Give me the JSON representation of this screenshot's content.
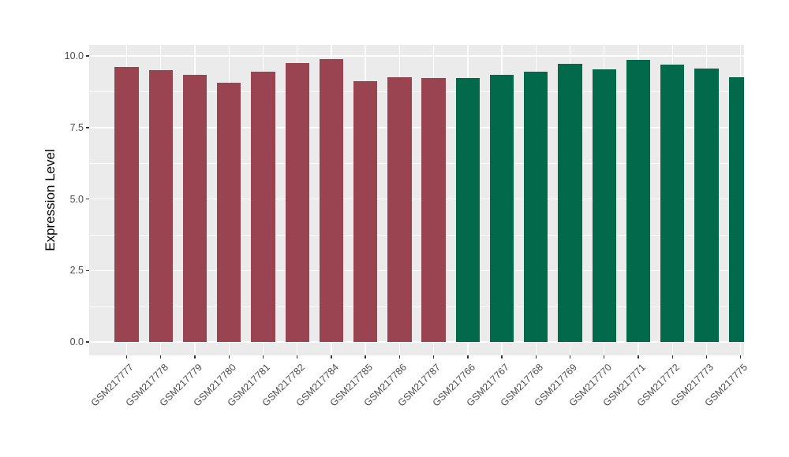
{
  "chart_data": {
    "type": "bar",
    "title": "",
    "xlabel": "",
    "ylabel": "Expression Level",
    "legend": "none",
    "grid": true,
    "categories": [
      "GSM217777",
      "GSM217778",
      "GSM217779",
      "GSM217780",
      "GSM217781",
      "GSM217782",
      "GSM217784",
      "GSM217785",
      "GSM217786",
      "GSM217787",
      "GSM217766",
      "GSM217767",
      "GSM217768",
      "GSM217769",
      "GSM217770",
      "GSM217771",
      "GSM217772",
      "GSM217773",
      "GSM217775"
    ],
    "values": [
      9.62,
      9.5,
      9.33,
      9.07,
      9.46,
      9.75,
      9.9,
      9.12,
      9.25,
      9.23,
      9.22,
      9.34,
      9.45,
      9.73,
      9.53,
      9.86,
      9.7,
      9.57,
      9.26
    ],
    "bar_colors": [
      "#9B4451",
      "#9B4451",
      "#9B4451",
      "#9B4451",
      "#9B4451",
      "#9B4451",
      "#9B4451",
      "#9B4451",
      "#9B4451",
      "#9B4451",
      "#02694A",
      "#02694A",
      "#02694A",
      "#02694A",
      "#02694A",
      "#02694A",
      "#02694A",
      "#02694A",
      "#02694A"
    ],
    "color_groups": [
      {
        "color": "#9B4451",
        "first_category": "GSM217777",
        "count": 10
      },
      {
        "color": "#02694A",
        "first_category": "GSM217766",
        "count": 9
      }
    ],
    "ylim": [
      0,
      10
    ],
    "yticks": {
      "values": [
        0,
        2.5,
        5,
        7.5,
        10
      ],
      "labels": [
        "0.0",
        "2.5",
        "5.0",
        "7.5",
        "10.0"
      ]
    },
    "yticks_minor": [
      1.25,
      3.75,
      6.25,
      8.75
    ],
    "panel_value_range": [
      -0.47,
      10.39
    ],
    "panel_background": "#EBEBEB",
    "grid_color": "#FFFFFF",
    "tick_mark_color": "#333333",
    "tick_label_color": "#4D4D4D",
    "axis_title_color": "#000000"
  }
}
